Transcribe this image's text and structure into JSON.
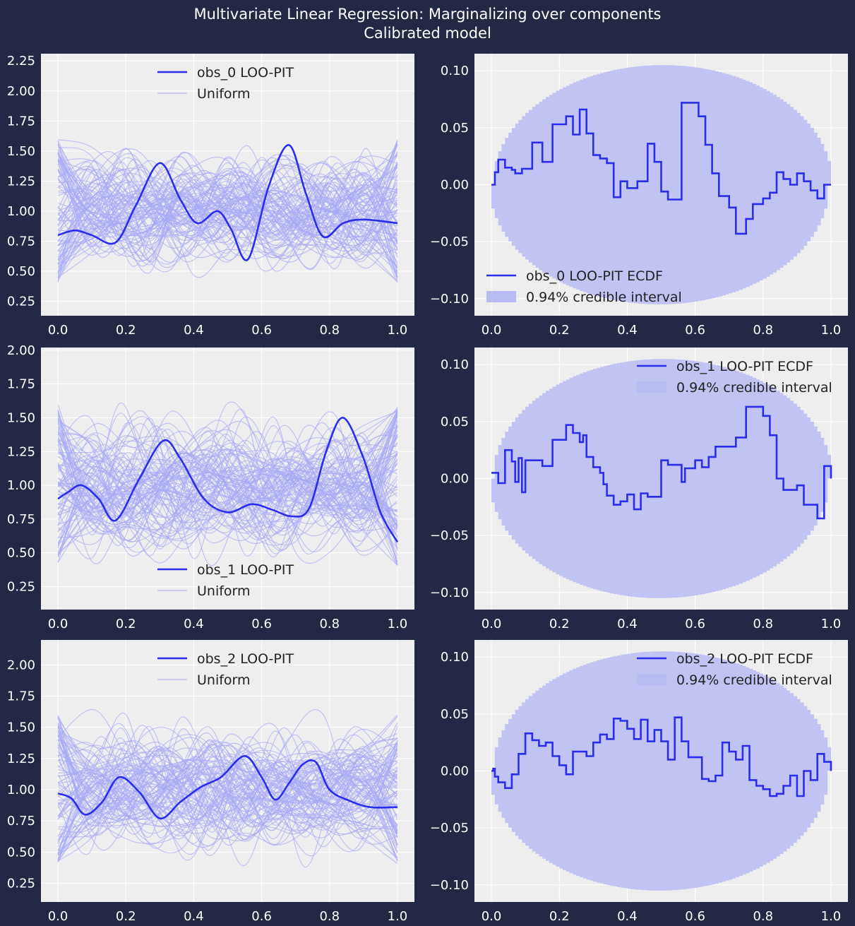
{
  "figure": {
    "title_line1": "Multivariate Linear Regression: Marginalizing over components",
    "title_line2": "Calibrated model",
    "colors": {
      "background": "#232844",
      "axes_bg": "#eeeeee",
      "grid": "#ffffff",
      "main_line": "#2a2eec",
      "uniform_line": "#a8aaf5",
      "band_fill": "#b9bbf3",
      "tick_text": "#ffffff",
      "legend_text": "#222222"
    }
  },
  "chart_data": [
    {
      "id": "pit_obs_0",
      "type": "line",
      "title": "",
      "xlabel": "",
      "ylabel": "",
      "xlim": [
        -0.05,
        1.05
      ],
      "ylim": [
        0.13,
        2.31
      ],
      "xticks": [
        "0.0",
        "0.2",
        "0.4",
        "0.6",
        "0.8",
        "1.0"
      ],
      "yticks": [
        "0.25",
        "0.50",
        "0.75",
        "1.00",
        "1.25",
        "1.50",
        "1.75",
        "2.00",
        "2.25"
      ],
      "grid": true,
      "legend_position": "top-center",
      "series": [
        {
          "name": "obs_0 LOO-PIT",
          "kind": "kde",
          "x": [
            0.0,
            0.05,
            0.1,
            0.17,
            0.23,
            0.3,
            0.36,
            0.41,
            0.47,
            0.51,
            0.56,
            0.62,
            0.68,
            0.73,
            0.78,
            0.84,
            0.9,
            1.0
          ],
          "y": [
            0.8,
            0.84,
            0.8,
            0.74,
            1.05,
            1.4,
            1.1,
            0.9,
            1.0,
            0.85,
            0.6,
            1.2,
            1.55,
            1.15,
            0.79,
            0.9,
            0.93,
            0.9
          ]
        },
        {
          "name": "Uniform",
          "kind": "reference_band",
          "n_curves": 100,
          "range": [
            0.25,
            2.2
          ]
        }
      ]
    },
    {
      "id": "ecdf_obs_0",
      "type": "line",
      "title": "",
      "xlabel": "",
      "ylabel": "",
      "xlim": [
        -0.05,
        1.05
      ],
      "ylim": [
        -0.115,
        0.115
      ],
      "xticks": [
        "0.0",
        "0.2",
        "0.4",
        "0.6",
        "0.8",
        "1.0"
      ],
      "yticks": [
        "−0.10",
        "−0.05",
        "0.00",
        "0.05",
        "0.10"
      ],
      "grid": true,
      "legend_position": "bottom-left",
      "series": [
        {
          "name": "obs_0 LOO-PIT ECDF",
          "kind": "step",
          "x": [
            0.0,
            0.01,
            0.02,
            0.04,
            0.06,
            0.07,
            0.09,
            0.12,
            0.15,
            0.18,
            0.2,
            0.22,
            0.24,
            0.26,
            0.28,
            0.3,
            0.32,
            0.34,
            0.36,
            0.38,
            0.4,
            0.43,
            0.46,
            0.48,
            0.5,
            0.52,
            0.56,
            0.59,
            0.61,
            0.63,
            0.65,
            0.67,
            0.7,
            0.72,
            0.75,
            0.77,
            0.8,
            0.82,
            0.84,
            0.86,
            0.88,
            0.9,
            0.92,
            0.94,
            0.96,
            0.98,
            1.0
          ],
          "y": [
            0.0,
            0.011,
            0.022,
            0.015,
            0.013,
            0.01,
            0.014,
            0.037,
            0.02,
            0.053,
            0.053,
            0.06,
            0.044,
            0.066,
            0.045,
            0.026,
            0.023,
            0.019,
            -0.011,
            0.003,
            -0.003,
            0.003,
            0.036,
            0.02,
            -0.006,
            -0.013,
            0.072,
            0.072,
            0.06,
            0.035,
            0.01,
            -0.01,
            -0.02,
            -0.043,
            -0.03,
            -0.017,
            -0.012,
            -0.007,
            0.011,
            0.005,
            0.0,
            0.01,
            0.003,
            -0.005,
            -0.012,
            0.0,
            0.0
          ]
        },
        {
          "name": "0.94% credible interval",
          "kind": "envelope",
          "amplitude": 0.105,
          "center_x": 0.4
        }
      ]
    },
    {
      "id": "pit_obs_1",
      "type": "line",
      "title": "",
      "xlabel": "",
      "ylabel": "",
      "xlim": [
        -0.05,
        1.05
      ],
      "ylim": [
        0.08,
        2.02
      ],
      "xticks": [
        "0.0",
        "0.2",
        "0.4",
        "0.6",
        "0.8",
        "1.0"
      ],
      "yticks": [
        "0.25",
        "0.50",
        "0.75",
        "1.00",
        "1.25",
        "1.50",
        "1.75",
        "2.00"
      ],
      "grid": true,
      "legend_position": "bottom-center",
      "series": [
        {
          "name": "obs_1 LOO-PIT",
          "kind": "kde",
          "x": [
            0.0,
            0.03,
            0.07,
            0.12,
            0.17,
            0.24,
            0.31,
            0.36,
            0.43,
            0.5,
            0.57,
            0.63,
            0.69,
            0.74,
            0.79,
            0.84,
            0.9,
            0.95,
            1.0
          ],
          "y": [
            0.9,
            0.95,
            1.0,
            0.9,
            0.74,
            1.05,
            1.33,
            1.2,
            0.9,
            0.8,
            0.86,
            0.82,
            0.77,
            0.83,
            1.25,
            1.5,
            1.2,
            0.8,
            0.58
          ]
        },
        {
          "name": "Uniform",
          "kind": "reference_band",
          "n_curves": 100,
          "range": [
            0.2,
            1.9
          ]
        }
      ]
    },
    {
      "id": "ecdf_obs_1",
      "type": "line",
      "title": "",
      "xlabel": "",
      "ylabel": "",
      "xlim": [
        -0.05,
        1.05
      ],
      "ylim": [
        -0.115,
        0.115
      ],
      "xticks": [
        "0.0",
        "0.2",
        "0.4",
        "0.6",
        "0.8",
        "1.0"
      ],
      "yticks": [
        "−0.10",
        "−0.05",
        "0.00",
        "0.05",
        "0.10"
      ],
      "grid": true,
      "legend_position": "top-right",
      "series": [
        {
          "name": "obs_1 LOO-PIT ECDF",
          "kind": "step",
          "x": [
            0.0,
            0.01,
            0.02,
            0.04,
            0.06,
            0.07,
            0.08,
            0.09,
            0.1,
            0.12,
            0.15,
            0.18,
            0.21,
            0.22,
            0.24,
            0.26,
            0.27,
            0.28,
            0.3,
            0.32,
            0.33,
            0.34,
            0.36,
            0.38,
            0.4,
            0.42,
            0.44,
            0.46,
            0.5,
            0.52,
            0.56,
            0.57,
            0.6,
            0.62,
            0.64,
            0.66,
            0.7,
            0.72,
            0.75,
            0.76,
            0.8,
            0.82,
            0.84,
            0.86,
            0.9,
            0.92,
            0.96,
            0.98,
            1.0
          ],
          "y": [
            0.005,
            0.005,
            -0.004,
            0.025,
            0.015,
            -0.003,
            0.018,
            -0.012,
            0.016,
            0.016,
            0.011,
            0.034,
            0.034,
            0.047,
            0.04,
            0.032,
            0.038,
            0.019,
            0.01,
            0.005,
            -0.005,
            -0.015,
            -0.023,
            -0.02,
            -0.014,
            -0.027,
            -0.013,
            -0.016,
            0.016,
            0.012,
            -0.003,
            0.009,
            0.016,
            0.01,
            0.019,
            0.028,
            0.028,
            0.036,
            0.063,
            0.063,
            0.055,
            0.038,
            0.0,
            -0.01,
            -0.006,
            -0.023,
            -0.035,
            0.011,
            0.0
          ]
        },
        {
          "name": "0.94% credible interval",
          "kind": "envelope",
          "amplitude": 0.105,
          "center_x": 0.4
        }
      ]
    },
    {
      "id": "pit_obs_2",
      "type": "line",
      "title": "",
      "xlabel": "",
      "ylabel": "",
      "xlim": [
        -0.05,
        1.05
      ],
      "ylim": [
        0.1,
        2.2
      ],
      "xticks": [
        "0.0",
        "0.2",
        "0.4",
        "0.6",
        "0.8",
        "1.0"
      ],
      "yticks": [
        "0.25",
        "0.50",
        "0.75",
        "1.00",
        "1.25",
        "1.50",
        "1.75",
        "2.00"
      ],
      "grid": true,
      "legend_position": "top-center",
      "series": [
        {
          "name": "obs_2 LOO-PIT",
          "kind": "kde",
          "x": [
            0.0,
            0.04,
            0.08,
            0.13,
            0.18,
            0.24,
            0.3,
            0.36,
            0.42,
            0.48,
            0.55,
            0.6,
            0.64,
            0.68,
            0.72,
            0.76,
            0.8,
            0.86,
            0.92,
            1.0
          ],
          "y": [
            0.97,
            0.93,
            0.8,
            0.9,
            1.1,
            0.98,
            0.77,
            0.9,
            1.02,
            1.1,
            1.27,
            1.1,
            0.92,
            1.05,
            1.2,
            1.22,
            1.0,
            0.91,
            0.86,
            0.86
          ]
        },
        {
          "name": "Uniform",
          "kind": "reference_band",
          "n_curves": 100,
          "range": [
            0.2,
            2.12
          ]
        }
      ]
    },
    {
      "id": "ecdf_obs_2",
      "type": "line",
      "title": "",
      "xlabel": "",
      "ylabel": "",
      "xlim": [
        -0.05,
        1.05
      ],
      "ylim": [
        -0.115,
        0.115
      ],
      "xticks": [
        "0.0",
        "0.2",
        "0.4",
        "0.6",
        "0.8",
        "1.0"
      ],
      "yticks": [
        "−0.10",
        "−0.05",
        "0.00",
        "0.05",
        "0.10"
      ],
      "grid": true,
      "legend_position": "top-right",
      "series": [
        {
          "name": "obs_2 LOO-PIT ECDF",
          "kind": "step",
          "x": [
            0.0,
            0.005,
            0.01,
            0.02,
            0.04,
            0.06,
            0.08,
            0.1,
            0.12,
            0.14,
            0.16,
            0.18,
            0.2,
            0.22,
            0.24,
            0.28,
            0.3,
            0.32,
            0.34,
            0.36,
            0.38,
            0.4,
            0.42,
            0.44,
            0.46,
            0.48,
            0.5,
            0.52,
            0.54,
            0.56,
            0.58,
            0.62,
            0.64,
            0.66,
            0.68,
            0.7,
            0.72,
            0.74,
            0.76,
            0.78,
            0.8,
            0.82,
            0.84,
            0.86,
            0.88,
            0.9,
            0.92,
            0.94,
            0.96,
            0.98,
            1.0
          ],
          "y": [
            0.0,
            0.002,
            -0.005,
            -0.01,
            -0.015,
            -0.003,
            0.015,
            0.033,
            0.027,
            0.022,
            0.025,
            0.013,
            0.005,
            -0.003,
            0.017,
            0.013,
            0.025,
            0.032,
            0.028,
            0.046,
            0.044,
            0.037,
            0.028,
            0.045,
            0.026,
            0.036,
            0.026,
            0.01,
            0.047,
            0.026,
            0.012,
            -0.007,
            -0.009,
            -0.004,
            0.025,
            0.017,
            0.01,
            0.022,
            -0.008,
            -0.013,
            -0.016,
            -0.022,
            -0.02,
            -0.013,
            -0.004,
            -0.022,
            0.0,
            -0.008,
            0.015,
            0.008,
            0.0
          ]
        },
        {
          "name": "0.94% credible interval",
          "kind": "envelope",
          "amplitude": 0.105,
          "center_x": 0.4
        }
      ]
    }
  ]
}
